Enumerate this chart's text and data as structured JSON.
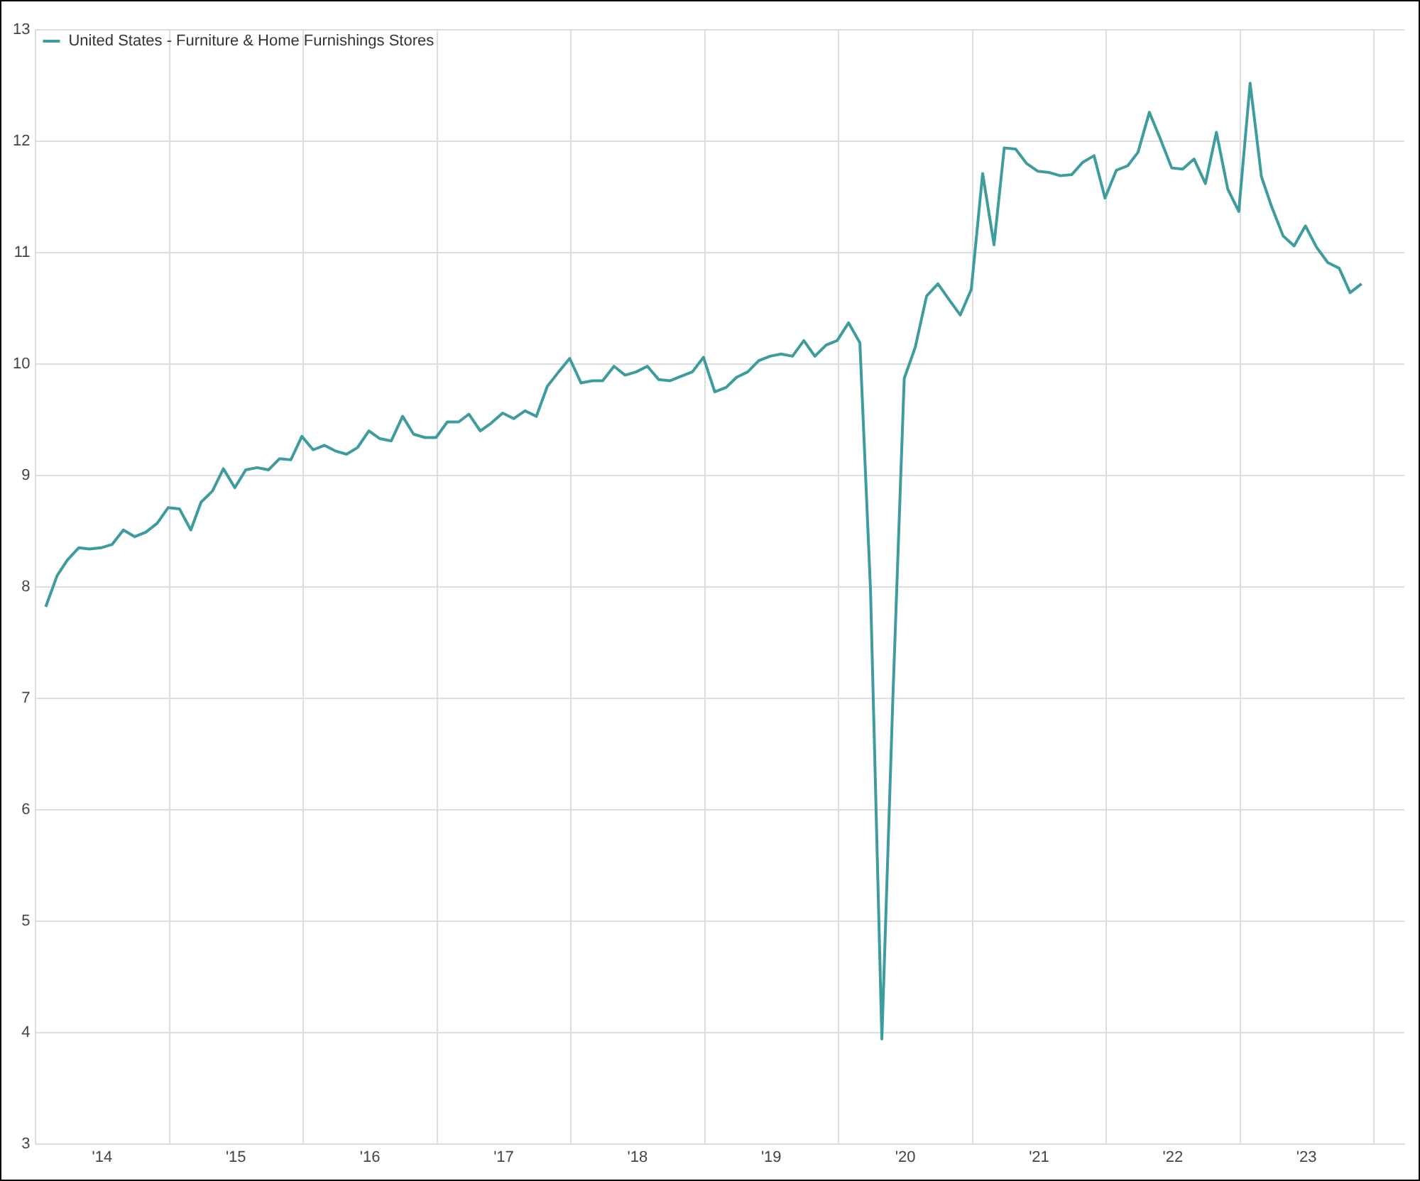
{
  "chart_data": {
    "type": "line",
    "legend": "top left",
    "grid": true,
    "marker": "none",
    "line_style": "solid",
    "xlim": [
      "2014-01-01",
      "2024-03-24"
    ],
    "ylim": [
      3,
      13
    ],
    "yticks": [
      3,
      4,
      5,
      6,
      7,
      8,
      9,
      10,
      11,
      12,
      13
    ],
    "xticks": [
      {
        "value": "2014-07-01",
        "label": "'14"
      },
      {
        "value": "2015-01-01",
        "label": null
      },
      {
        "value": "2015-07-01",
        "label": "'15"
      },
      {
        "value": "2016-01-01",
        "label": null
      },
      {
        "value": "2016-07-01",
        "label": "'16"
      },
      {
        "value": "2017-01-01",
        "label": null
      },
      {
        "value": "2017-07-01",
        "label": "'17"
      },
      {
        "value": "2018-01-01",
        "label": null
      },
      {
        "value": "2018-07-01",
        "label": "'18"
      },
      {
        "value": "2019-01-01",
        "label": null
      },
      {
        "value": "2019-07-01",
        "label": "'19"
      },
      {
        "value": "2020-01-01",
        "label": null
      },
      {
        "value": "2020-07-01",
        "label": "'20"
      },
      {
        "value": "2021-01-01",
        "label": null
      },
      {
        "value": "2021-07-01",
        "label": "'21"
      },
      {
        "value": "2022-01-01",
        "label": null
      },
      {
        "value": "2022-07-01",
        "label": "'22"
      },
      {
        "value": "2023-01-01",
        "label": null
      },
      {
        "value": "2023-07-01",
        "label": "'23"
      },
      {
        "value": "2024-01-01",
        "label": null
      }
    ],
    "x": [
      "2014-01-28",
      "2014-02-28",
      "2014-03-28",
      "2014-04-28",
      "2014-05-28",
      "2014-06-28",
      "2014-07-28",
      "2014-08-28",
      "2014-09-28",
      "2014-10-28",
      "2014-11-28",
      "2014-12-28",
      "2015-01-28",
      "2015-02-28",
      "2015-03-28",
      "2015-04-28",
      "2015-05-28",
      "2015-06-28",
      "2015-07-28",
      "2015-08-28",
      "2015-09-28",
      "2015-10-28",
      "2015-11-28",
      "2015-12-28",
      "2016-01-28",
      "2016-02-28",
      "2016-03-28",
      "2016-04-28",
      "2016-05-28",
      "2016-06-28",
      "2016-07-28",
      "2016-08-28",
      "2016-09-28",
      "2016-10-28",
      "2016-11-28",
      "2016-12-28",
      "2017-01-28",
      "2017-02-28",
      "2017-03-28",
      "2017-04-28",
      "2017-05-28",
      "2017-06-28",
      "2017-07-28",
      "2017-08-28",
      "2017-09-28",
      "2017-10-28",
      "2017-11-28",
      "2017-12-28",
      "2018-01-28",
      "2018-02-28",
      "2018-03-28",
      "2018-04-28",
      "2018-05-28",
      "2018-06-28",
      "2018-07-28",
      "2018-08-28",
      "2018-09-28",
      "2018-10-28",
      "2018-11-28",
      "2018-12-28",
      "2019-01-28",
      "2019-02-28",
      "2019-03-28",
      "2019-04-28",
      "2019-05-28",
      "2019-06-28",
      "2019-07-28",
      "2019-08-28",
      "2019-09-28",
      "2019-10-28",
      "2019-11-28",
      "2019-12-28",
      "2020-01-28",
      "2020-02-28",
      "2020-03-28",
      "2020-04-28",
      "2020-05-28",
      "2020-06-28",
      "2020-07-28",
      "2020-08-28",
      "2020-09-28",
      "2020-10-28",
      "2020-11-28",
      "2020-12-28",
      "2021-01-28",
      "2021-02-28",
      "2021-03-28",
      "2021-04-28",
      "2021-05-28",
      "2021-06-28",
      "2021-07-28",
      "2021-08-28",
      "2021-09-28",
      "2021-10-28",
      "2021-11-28",
      "2021-12-28",
      "2022-01-28",
      "2022-02-28",
      "2022-03-28",
      "2022-04-28",
      "2022-05-28",
      "2022-06-28",
      "2022-07-28",
      "2022-08-28",
      "2022-09-28",
      "2022-10-28",
      "2022-11-28",
      "2022-12-28",
      "2023-01-28",
      "2023-02-28",
      "2023-03-28",
      "2023-04-28",
      "2023-05-28",
      "2023-06-28",
      "2023-07-28",
      "2023-08-28",
      "2023-09-28",
      "2023-10-28",
      "2023-11-28"
    ],
    "series": [
      {
        "name": "United States - Furniture & Home Furnishings Stores",
        "color": "#3f9c9c",
        "values": [
          7.82,
          8.1,
          8.24,
          8.35,
          8.34,
          8.35,
          8.38,
          8.51,
          8.45,
          8.49,
          8.57,
          8.71,
          8.7,
          8.51,
          8.76,
          8.86,
          9.06,
          8.89,
          9.05,
          9.07,
          9.05,
          9.15,
          9.14,
          9.35,
          9.23,
          9.27,
          9.22,
          9.19,
          9.25,
          9.4,
          9.33,
          9.31,
          9.53,
          9.37,
          9.34,
          9.34,
          9.48,
          9.48,
          9.55,
          9.4,
          9.47,
          9.56,
          9.51,
          9.58,
          9.53,
          9.8,
          9.93,
          10.05,
          9.83,
          9.85,
          9.85,
          9.98,
          9.9,
          9.93,
          9.98,
          9.86,
          9.85,
          9.89,
          9.93,
          10.06,
          9.75,
          9.79,
          9.88,
          9.93,
          10.03,
          10.07,
          10.09,
          10.07,
          10.21,
          10.07,
          10.17,
          10.21,
          10.37,
          10.19,
          7.97,
          3.94,
          7.0,
          9.87,
          10.15,
          10.61,
          10.72,
          10.58,
          10.44,
          10.67,
          11.71,
          11.07,
          11.94,
          11.93,
          11.8,
          11.73,
          11.72,
          11.69,
          11.7,
          11.81,
          11.87,
          11.49,
          11.74,
          11.78,
          11.9,
          12.26,
          12.02,
          11.76,
          11.75,
          11.84,
          11.62,
          12.08,
          11.57,
          11.37,
          12.52,
          11.68,
          11.41,
          11.15,
          11.06,
          11.24,
          11.05,
          10.91,
          10.86,
          10.64,
          10.72
        ]
      }
    ]
  }
}
